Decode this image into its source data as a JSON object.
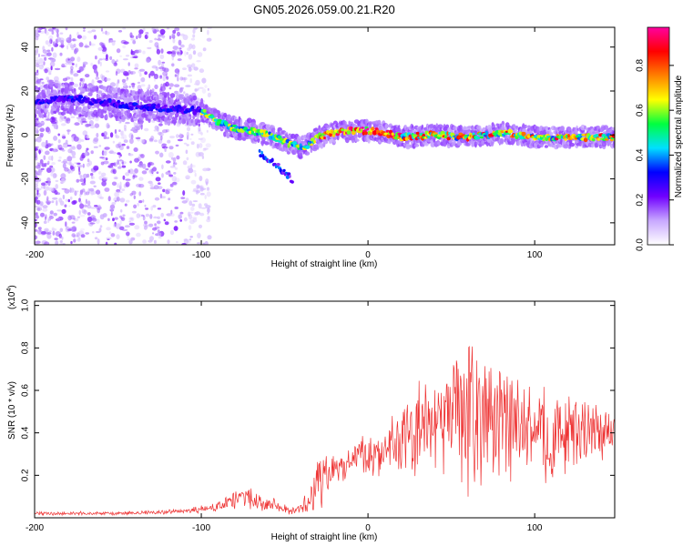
{
  "title": "GN05.2026.059.00.21.R20",
  "spectrogram": {
    "type": "heatmap",
    "xlabel": "Height of straight line (km)",
    "ylabel": "Frequency (Hz)",
    "xlim": [
      -200,
      148
    ],
    "ylim": [
      -50,
      49
    ],
    "xticks": [
      -200,
      -100,
      0,
      100
    ],
    "yticks": [
      -40,
      -20,
      0,
      20,
      40
    ],
    "colorbar": {
      "label": "Normalized spectral amplitude",
      "range": [
        0,
        0.97
      ],
      "ticks": [
        "0.0",
        "0.2",
        "0.4",
        "0.6",
        "0.8"
      ],
      "tick_values": [
        0.0,
        0.2,
        0.4,
        0.6,
        0.8
      ],
      "colormap": [
        "#ffffff",
        "#c8a8ff",
        "#7000ff",
        "#0000ff",
        "#00e0ff",
        "#00ff40",
        "#ffff00",
        "#ff8000",
        "#ff0000",
        "#ff00a0"
      ]
    },
    "ridge_points": {
      "x": [
        -200,
        -180,
        -160,
        -140,
        -120,
        -100,
        -90,
        -80,
        -70,
        -60,
        -50,
        -40,
        -35,
        -30,
        -20,
        -10,
        0,
        10,
        20,
        40,
        60,
        80,
        100,
        120,
        148
      ],
      "freq": [
        15,
        17,
        15,
        13,
        12,
        11,
        6,
        3,
        2,
        0,
        -3,
        -6,
        -4,
        -1,
        1,
        2,
        2,
        1,
        -1,
        0,
        -1,
        1,
        -1,
        -1,
        -1
      ]
    },
    "branch_points": {
      "x": [
        -65,
        -55,
        -45
      ],
      "freq": [
        -8,
        -14,
        -21
      ]
    }
  },
  "snr": {
    "type": "line",
    "xlabel": "Height of straight line (km)",
    "ylabel": "SNR (10 * v/v)",
    "exponent_label": "(x10",
    "exponent_sup": "4",
    "exponent_close": ")",
    "xlim": [
      -200,
      148
    ],
    "ylim": [
      0,
      1.02
    ],
    "xticks": [
      -200,
      -100,
      0,
      100
    ],
    "yticks": [
      "0.2",
      "0.4",
      "0.6",
      "0.8",
      "1.0"
    ],
    "ytick_values": [
      0.2,
      0.4,
      0.6,
      0.8,
      1.0
    ],
    "series": [
      {
        "color": "#ee3333",
        "envelope_x": [
          -200,
          -150,
          -110,
          -90,
          -75,
          -60,
          -45,
          -35,
          -28,
          -20,
          -10,
          0,
          10,
          20,
          30,
          40,
          50,
          60,
          66,
          75,
          90,
          100,
          110,
          120,
          130,
          140,
          148
        ],
        "envelope_center": [
          0.02,
          0.02,
          0.03,
          0.05,
          0.1,
          0.07,
          0.03,
          0.08,
          0.18,
          0.22,
          0.28,
          0.3,
          0.32,
          0.36,
          0.4,
          0.45,
          0.48,
          0.5,
          0.55,
          0.45,
          0.42,
          0.4,
          0.38,
          0.4,
          0.42,
          0.4,
          0.4
        ],
        "envelope_amp": [
          0.01,
          0.01,
          0.015,
          0.03,
          0.06,
          0.04,
          0.02,
          0.06,
          0.2,
          0.08,
          0.1,
          0.12,
          0.15,
          0.2,
          0.25,
          0.3,
          0.38,
          0.42,
          0.48,
          0.3,
          0.3,
          0.28,
          0.25,
          0.22,
          0.2,
          0.15,
          0.12
        ]
      }
    ]
  }
}
